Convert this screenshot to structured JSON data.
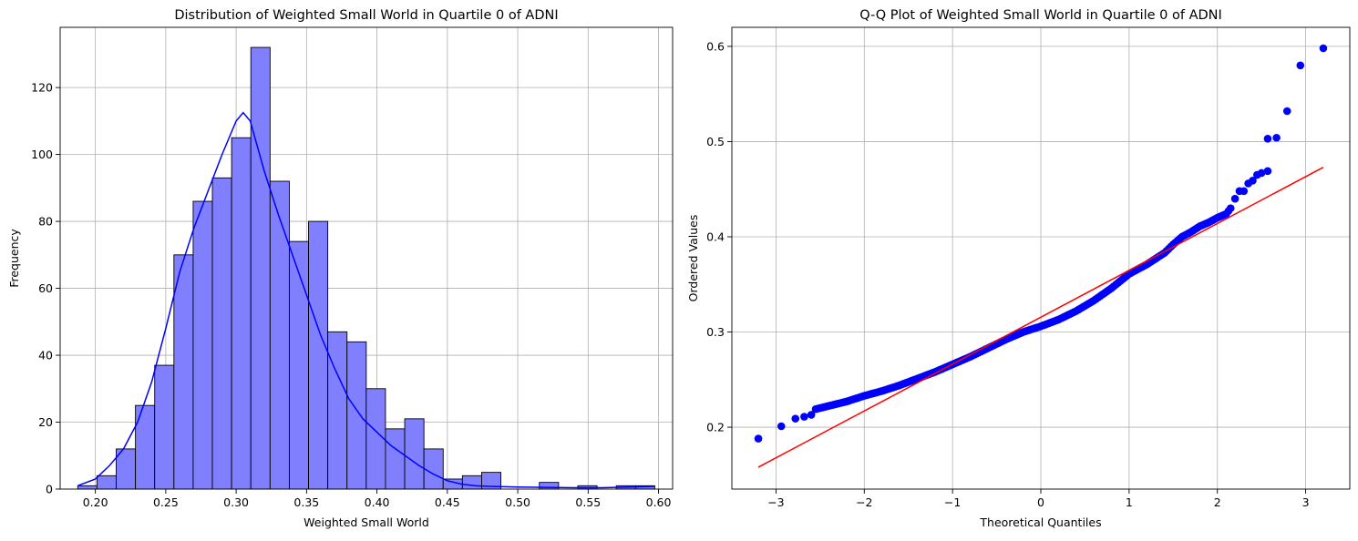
{
  "colors": {
    "hist_fill": "#8080ff",
    "hist_edge": "#000000",
    "kde_line": "#0000ff",
    "qq_points": "#0000ff",
    "qq_line": "#ff0000",
    "grid": "#b0b0b0"
  },
  "chart_data": [
    {
      "type": "bar",
      "title": "Distribution of Weighted Small World in Quartile 0 of ADNI",
      "xlabel": "Weighted Small World",
      "ylabel": "Frequency",
      "xlim": [
        0.175,
        0.61
      ],
      "ylim": [
        0,
        138
      ],
      "xticks": [
        0.2,
        0.25,
        0.3,
        0.35,
        0.4,
        0.45,
        0.5,
        0.55,
        0.6
      ],
      "xtick_labels": [
        "0.20",
        "0.25",
        "0.30",
        "0.35",
        "0.40",
        "0.45",
        "0.50",
        "0.55",
        "0.60"
      ],
      "yticks": [
        0,
        20,
        40,
        60,
        80,
        100,
        120
      ],
      "ytick_labels": [
        "0",
        "20",
        "40",
        "60",
        "80",
        "100",
        "120"
      ],
      "grid": true,
      "bins": {
        "start": 0.1875,
        "width": 0.01366,
        "count": 30
      },
      "values": [
        1,
        4,
        12,
        25,
        37,
        70,
        86,
        93,
        105,
        132,
        92,
        74,
        80,
        47,
        44,
        30,
        18,
        21,
        12,
        3,
        4,
        5,
        0,
        0,
        2,
        0,
        1,
        0,
        1,
        1
      ],
      "kde": {
        "x": [
          0.1875,
          0.2,
          0.21,
          0.22,
          0.23,
          0.24,
          0.25,
          0.26,
          0.27,
          0.28,
          0.29,
          0.3,
          0.305,
          0.31,
          0.32,
          0.33,
          0.34,
          0.35,
          0.36,
          0.37,
          0.38,
          0.39,
          0.4,
          0.41,
          0.42,
          0.43,
          0.44,
          0.45,
          0.46,
          0.47,
          0.48,
          0.5,
          0.52,
          0.54,
          0.56,
          0.58,
          0.597
        ],
        "y": [
          1,
          3,
          7,
          12,
          20,
          32,
          48,
          65,
          78,
          89,
          100,
          110,
          112.5,
          110,
          95,
          82,
          70,
          58,
          46,
          36,
          27,
          21,
          17,
          13,
          10,
          7,
          4.5,
          2.5,
          1.5,
          1,
          0.8,
          0.6,
          0.5,
          0.4,
          0.4,
          0.6,
          0.8
        ]
      }
    },
    {
      "type": "scatter",
      "title": "Q-Q Plot of Weighted Small World in Quartile 0 of ADNI",
      "xlabel": "Theoretical Quantiles",
      "ylabel": "Ordered Values",
      "xlim": [
        -3.5,
        3.5
      ],
      "ylim": [
        0.135,
        0.62
      ],
      "xticks": [
        -3,
        -2,
        -1,
        0,
        1,
        2,
        3
      ],
      "xtick_labels": [
        "−3",
        "−2",
        "−1",
        "0",
        "1",
        "2",
        "3"
      ],
      "yticks": [
        0.2,
        0.3,
        0.4,
        0.5,
        0.6
      ],
      "ytick_labels": [
        "0.2",
        "0.3",
        "0.4",
        "0.5",
        "0.6"
      ],
      "grid": true,
      "fit_line": {
        "x": [
          -3.2,
          3.2
        ],
        "y": [
          0.158,
          0.473
        ]
      },
      "curve": {
        "x": [
          -2.55,
          -2.2,
          -2.0,
          -1.8,
          -1.6,
          -1.4,
          -1.2,
          -1.0,
          -0.8,
          -0.6,
          -0.4,
          -0.2,
          0.0,
          0.2,
          0.4,
          0.6,
          0.8,
          1.0,
          1.2,
          1.4,
          1.5,
          1.6,
          1.7,
          1.8,
          1.9,
          2.0,
          2.1,
          2.15
        ],
        "y": [
          0.219,
          0.227,
          0.233,
          0.238,
          0.244,
          0.251,
          0.258,
          0.266,
          0.274,
          0.283,
          0.292,
          0.3,
          0.306,
          0.313,
          0.322,
          0.333,
          0.346,
          0.361,
          0.371,
          0.383,
          0.392,
          0.4,
          0.405,
          0.411,
          0.415,
          0.42,
          0.424,
          0.43
        ]
      },
      "outliers": {
        "x": [
          -3.2,
          -2.94,
          -2.78,
          -2.68,
          -2.6,
          2.2,
          2.25,
          2.3,
          2.35,
          2.4,
          2.45,
          2.5,
          2.57,
          2.57,
          2.67,
          2.79,
          2.94,
          3.2
        ],
        "y": [
          0.188,
          0.201,
          0.209,
          0.211,
          0.213,
          0.44,
          0.448,
          0.448,
          0.456,
          0.459,
          0.465,
          0.467,
          0.469,
          0.503,
          0.504,
          0.532,
          0.58,
          0.598
        ]
      }
    }
  ]
}
